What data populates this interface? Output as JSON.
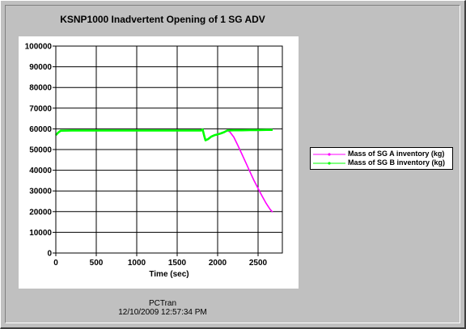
{
  "chart_data": {
    "type": "line",
    "title": "KSNP1000 Inadvertent Opening of 1 SG ADV",
    "xlabel": "Time (sec)",
    "ylabel": "",
    "xlim": [
      0,
      2800
    ],
    "ylim": [
      0,
      100000
    ],
    "x_ticks": [
      "0",
      "500",
      "1000",
      "1500",
      "2000",
      "2500"
    ],
    "y_ticks": [
      "0",
      "10000",
      "20000",
      "30000",
      "40000",
      "50000",
      "60000",
      "70000",
      "80000",
      "90000",
      "100000"
    ],
    "grid": true,
    "legend_position": "right",
    "series": [
      {
        "name": "Mass of SG A inventory (kg)",
        "color": "#ff00ff",
        "points": [
          [
            0,
            57000
          ],
          [
            30,
            58200
          ],
          [
            60,
            59100
          ],
          [
            200,
            59200
          ],
          [
            600,
            59200
          ],
          [
            1000,
            59200
          ],
          [
            1400,
            59200
          ],
          [
            1790,
            59200
          ],
          [
            1815,
            59700
          ],
          [
            1835,
            56500
          ],
          [
            1850,
            54500
          ],
          [
            1880,
            55000
          ],
          [
            1920,
            56200
          ],
          [
            1960,
            56900
          ],
          [
            2000,
            57300
          ],
          [
            2040,
            57800
          ],
          [
            2080,
            58400
          ],
          [
            2120,
            59200
          ],
          [
            2150,
            58600
          ],
          [
            2200,
            56000
          ],
          [
            2250,
            52000
          ],
          [
            2300,
            47800
          ],
          [
            2350,
            43500
          ],
          [
            2400,
            39200
          ],
          [
            2450,
            35000
          ],
          [
            2500,
            31200
          ],
          [
            2550,
            27500
          ],
          [
            2600,
            24000
          ],
          [
            2650,
            21000
          ],
          [
            2680,
            19800
          ]
        ]
      },
      {
        "name": "Mass of SG B inventory (kg)",
        "color": "#00ff00",
        "points": [
          [
            0,
            57000
          ],
          [
            30,
            58200
          ],
          [
            60,
            59100
          ],
          [
            200,
            59200
          ],
          [
            600,
            59200
          ],
          [
            1000,
            59200
          ],
          [
            1400,
            59200
          ],
          [
            1790,
            59200
          ],
          [
            1815,
            59700
          ],
          [
            1835,
            56500
          ],
          [
            1850,
            54500
          ],
          [
            1880,
            55000
          ],
          [
            1920,
            56200
          ],
          [
            1960,
            56900
          ],
          [
            2000,
            57300
          ],
          [
            2040,
            57800
          ],
          [
            2080,
            58400
          ],
          [
            2120,
            59200
          ],
          [
            2200,
            59300
          ],
          [
            2300,
            59300
          ],
          [
            2400,
            59400
          ],
          [
            2500,
            59400
          ],
          [
            2600,
            59500
          ],
          [
            2680,
            59500
          ]
        ]
      }
    ]
  },
  "footer": {
    "app_name": "PCTran",
    "timestamp": "12/10/2009 12:57:34 PM"
  }
}
